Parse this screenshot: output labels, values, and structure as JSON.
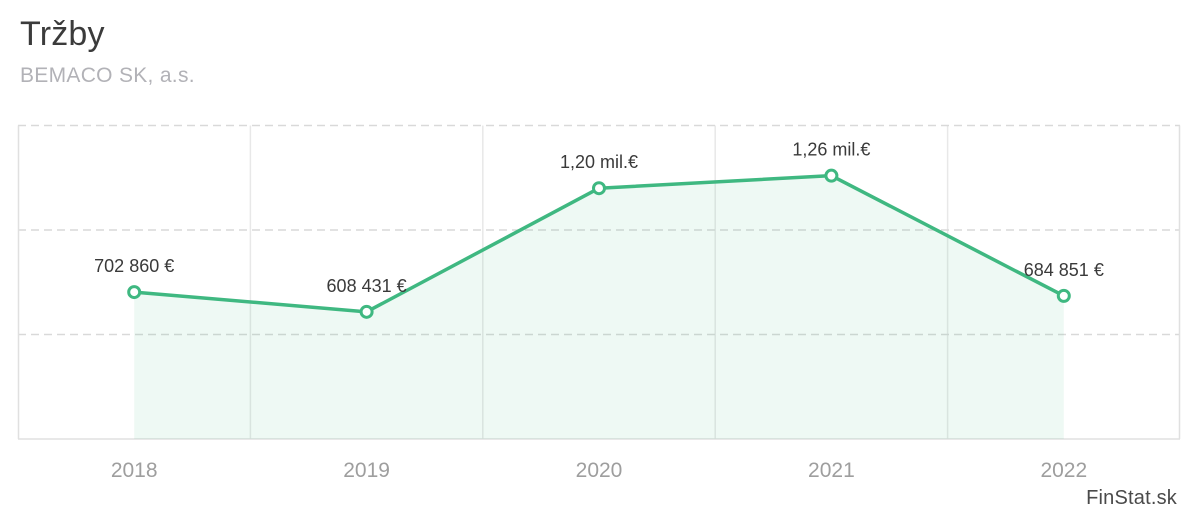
{
  "header": {
    "title": "Tržby",
    "subtitle": "BEMACO SK, a.s."
  },
  "watermark": "FinStat.sk",
  "colors": {
    "line": "#3fb881",
    "area_fill": "#3fb881",
    "area_opacity": "0.09",
    "marker_fill": "#ffffff",
    "grid_dashed": "#d9d9d9",
    "grid_vertical": "#e8e8e8",
    "plot_border": "#e0e0e0",
    "title": "#3b3b3b",
    "subtitle": "#b2b2b7",
    "point_label": "#3a3a3a",
    "axis_label": "#9e9e9e",
    "watermark": "#4a4a4a"
  },
  "chart_data": {
    "type": "line",
    "title": "Tržby",
    "subtitle": "BEMACO SK, a.s.",
    "categories": [
      "2018",
      "2019",
      "2020",
      "2021",
      "2022"
    ],
    "series": [
      {
        "name": "Tržby",
        "values": [
          702860,
          608431,
          1200000,
          1260000,
          684851
        ],
        "point_labels": [
          "702 860 €",
          "608 431 €",
          "1,20 mil.€",
          "1,26 mil.€",
          "684 851 €"
        ]
      }
    ],
    "xlabel": "",
    "ylabel": "",
    "ylim": [
      0,
      1500000
    ],
    "y_tick_interval": 500000,
    "grid": "horizontal-dashed, vertical-solid-band-separators",
    "legend": "none",
    "area_fill": true,
    "marker_style": "open-circle"
  }
}
